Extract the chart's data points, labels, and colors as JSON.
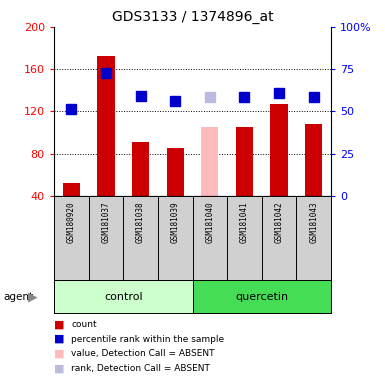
{
  "title": "GDS3133 / 1374896_at",
  "samples": [
    "GSM180920",
    "GSM181037",
    "GSM181038",
    "GSM181039",
    "GSM181040",
    "GSM181041",
    "GSM181042",
    "GSM181043"
  ],
  "bar_values": [
    52,
    172,
    91,
    85,
    105,
    105,
    127,
    108
  ],
  "bar_colors": [
    "#cc0000",
    "#cc0000",
    "#cc0000",
    "#cc0000",
    "#ffbbbb",
    "#cc0000",
    "#cc0000",
    "#cc0000"
  ],
  "percentile_values": [
    122,
    156,
    135,
    130,
    134,
    134,
    137,
    134
  ],
  "percentile_colors": [
    "#0000cc",
    "#0000cc",
    "#0000cc",
    "#0000cc",
    "#bbbbdd",
    "#0000cc",
    "#0000cc",
    "#0000cc"
  ],
  "ylim_left": [
    40,
    200
  ],
  "ylim_right": [
    0,
    100
  ],
  "yticks_left": [
    40,
    80,
    120,
    160,
    200
  ],
  "yticks_right": [
    0,
    25,
    50,
    75,
    100
  ],
  "ytick_labels_right": [
    "0",
    "25",
    "50",
    "75",
    "100%"
  ],
  "ytick_labels_left": [
    "40",
    "80",
    "120",
    "160",
    "200"
  ],
  "grid_lines": [
    80,
    120,
    160
  ],
  "control_color": "#ccffcc",
  "quercetin_color": "#44dd55",
  "legend_colors": [
    "#cc0000",
    "#0000cc",
    "#ffbbbb",
    "#bbbbdd"
  ],
  "legend_labels": [
    "count",
    "percentile rank within the sample",
    "value, Detection Call = ABSENT",
    "rank, Detection Call = ABSENT"
  ],
  "bar_width": 0.5,
  "marker_size": 7
}
